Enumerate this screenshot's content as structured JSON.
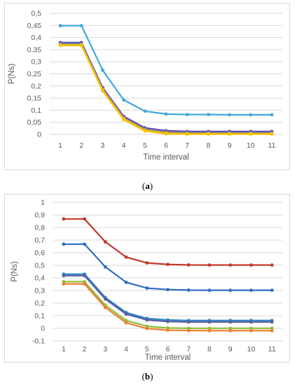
{
  "captions": {
    "a": {
      "open": "(",
      "letter": "a",
      "close": ")"
    },
    "b": {
      "open": "(",
      "letter": "b",
      "close": ")"
    }
  },
  "chart_data": [
    {
      "type": "line",
      "panel": "a",
      "title": "",
      "xlabel": "Time interval",
      "ylabel": "P(Ns)",
      "x": [
        1,
        2,
        3,
        4,
        5,
        6,
        7,
        8,
        9,
        10,
        11
      ],
      "ylim": [
        0,
        0.5
      ],
      "yticks": [
        0,
        0.05,
        0.1,
        0.15,
        0.2,
        0.25,
        0.3,
        0.35,
        0.4,
        0.45,
        0.5
      ],
      "ytick_labels": [
        "0",
        "0,05",
        "0,1",
        "0,15",
        "0,2",
        "0,25",
        "0,3",
        "0,35",
        "0,4",
        "0,45",
        "0,5"
      ],
      "grid": "horizontal",
      "legend": "none",
      "series": [
        {
          "color": "#41a8dc",
          "values": [
            0.449,
            0.449,
            0.265,
            0.142,
            0.096,
            0.084,
            0.082,
            0.082,
            0.081,
            0.081,
            0.081
          ]
        },
        {
          "color": "#7030a0",
          "values": [
            0.379,
            0.379,
            0.193,
            0.074,
            0.027,
            0.015,
            0.012,
            0.012,
            0.012,
            0.012,
            0.012
          ]
        },
        {
          "color": "#4472c4",
          "values": [
            0.376,
            0.376,
            0.19,
            0.071,
            0.024,
            0.012,
            0.009,
            0.009,
            0.009,
            0.009,
            0.009
          ]
        },
        {
          "color": "#ed7d31",
          "values": [
            0.372,
            0.372,
            0.186,
            0.067,
            0.02,
            0.008,
            0.005,
            0.005,
            0.005,
            0.005,
            0.005
          ]
        },
        {
          "color": "#a5c94d",
          "values": [
            0.37,
            0.37,
            0.183,
            0.064,
            0.017,
            0.005,
            0.003,
            0.003,
            0.003,
            0.003,
            0.003
          ]
        },
        {
          "color": "#ffc000",
          "values": [
            0.367,
            0.367,
            0.18,
            0.061,
            0.014,
            0.002,
            0.001,
            0.001,
            0.001,
            0.001,
            0.001
          ]
        }
      ]
    },
    {
      "type": "line",
      "panel": "b",
      "title": "",
      "xlabel": "Time interval",
      "ylabel": "P(Ns)",
      "x": [
        1,
        2,
        3,
        4,
        5,
        6,
        7,
        8,
        9,
        10,
        11
      ],
      "ylim": [
        -0.1,
        1
      ],
      "yticks": [
        -0.1,
        0,
        0.1,
        0.2,
        0.3,
        0.4,
        0.5,
        0.6,
        0.7,
        0.8,
        0.9,
        1
      ],
      "ytick_labels": [
        "-0,1",
        "0",
        "0,1",
        "0,2",
        "0,3",
        "0,4",
        "0,5",
        "0,6",
        "0,7",
        "0,8",
        "0,9",
        "1"
      ],
      "grid": "horizontal",
      "legend": "none",
      "series": [
        {
          "color": "#c0392b",
          "values": [
            0.868,
            0.868,
            0.686,
            0.565,
            0.519,
            0.507,
            0.503,
            0.502,
            0.502,
            0.502,
            0.502
          ]
        },
        {
          "color": "#2e6dbf",
          "values": [
            0.668,
            0.668,
            0.487,
            0.365,
            0.319,
            0.307,
            0.303,
            0.302,
            0.302,
            0.302,
            0.302
          ]
        },
        {
          "color": "#2e86c1",
          "values": [
            0.43,
            0.43,
            0.244,
            0.125,
            0.078,
            0.066,
            0.062,
            0.062,
            0.062,
            0.062,
            0.062
          ]
        },
        {
          "color": "#5b5ea6",
          "values": [
            0.418,
            0.418,
            0.232,
            0.113,
            0.066,
            0.054,
            0.05,
            0.05,
            0.05,
            0.05,
            0.05
          ]
        },
        {
          "color": "#8fbf3c",
          "values": [
            0.37,
            0.37,
            0.183,
            0.062,
            0.016,
            0.003,
            0.0,
            0.0,
            0.0,
            0.0,
            0.0
          ]
        },
        {
          "color": "#ed7d31",
          "values": [
            0.352,
            0.352,
            0.165,
            0.044,
            -0.002,
            -0.015,
            -0.018,
            -0.019,
            -0.019,
            -0.019,
            -0.019
          ]
        }
      ]
    }
  ]
}
